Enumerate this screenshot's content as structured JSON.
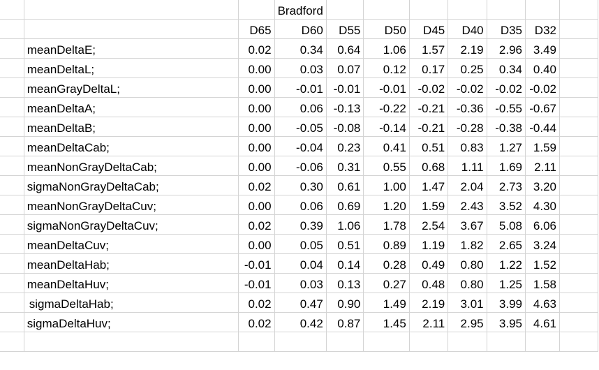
{
  "spreadsheet": {
    "group_title": "Bradford",
    "columns": [
      "D65",
      "D60",
      "D55",
      "D50",
      "D45",
      "D40",
      "D35",
      "D32"
    ],
    "rows": [
      {
        "label": "meanDeltaE;",
        "values": [
          "0.02",
          "0.34",
          "0.64",
          "1.06",
          "1.57",
          "2.19",
          "2.96",
          "3.49"
        ]
      },
      {
        "label": "meanDeltaL;",
        "values": [
          "0.00",
          "0.03",
          "0.07",
          "0.12",
          "0.17",
          "0.25",
          "0.34",
          "0.40"
        ]
      },
      {
        "label": "meanGrayDeltaL;",
        "values": [
          "0.00",
          "-0.01",
          "-0.01",
          "-0.01",
          "-0.02",
          "-0.02",
          "-0.02",
          "-0.02"
        ]
      },
      {
        "label": "meanDeltaA;",
        "values": [
          "0.00",
          "0.06",
          "-0.13",
          "-0.22",
          "-0.21",
          "-0.36",
          "-0.55",
          "-0.67"
        ]
      },
      {
        "label": "meanDeltaB;",
        "values": [
          "0.00",
          "-0.05",
          "-0.08",
          "-0.14",
          "-0.21",
          "-0.28",
          "-0.38",
          "-0.44"
        ]
      },
      {
        "label": "meanDeltaCab;",
        "values": [
          "0.00",
          "-0.04",
          "0.23",
          "0.41",
          "0.51",
          "0.83",
          "1.27",
          "1.59"
        ]
      },
      {
        "label": "meanNonGrayDeltaCab;",
        "values": [
          "0.00",
          "-0.06",
          "0.31",
          "0.55",
          "0.68",
          "1.11",
          "1.69",
          "2.11"
        ]
      },
      {
        "label": "sigmaNonGrayDeltaCab;",
        "values": [
          "0.02",
          "0.30",
          "0.61",
          "1.00",
          "1.47",
          "2.04",
          "2.73",
          "3.20"
        ]
      },
      {
        "label": "meanNonGrayDeltaCuv;",
        "values": [
          "0.00",
          "0.06",
          "0.69",
          "1.20",
          "1.59",
          "2.43",
          "3.52",
          "4.30"
        ]
      },
      {
        "label": "sigmaNonGrayDeltaCuv;",
        "values": [
          "0.02",
          "0.39",
          "1.06",
          "1.78",
          "2.54",
          "3.67",
          "5.08",
          "6.06"
        ]
      },
      {
        "label": "meanDeltaCuv;",
        "values": [
          "0.00",
          "0.05",
          "0.51",
          "0.89",
          "1.19",
          "1.82",
          "2.65",
          "3.24"
        ]
      },
      {
        "label": "meanDeltaHab;",
        "values": [
          "-0.01",
          "0.04",
          "0.14",
          "0.28",
          "0.49",
          "0.80",
          "1.22",
          "1.52"
        ]
      },
      {
        "label": "meanDeltaHuv;",
        "values": [
          "-0.01",
          "0.03",
          "0.13",
          "0.27",
          "0.48",
          "0.80",
          "1.25",
          "1.58"
        ]
      },
      {
        "label": " sigmaDeltaHab;",
        "values": [
          "0.02",
          "0.47",
          "0.90",
          "1.49",
          "2.19",
          "3.01",
          "3.99",
          "4.63"
        ]
      },
      {
        "label": "sigmaDeltaHuv;",
        "values": [
          "0.02",
          "0.42",
          "0.87",
          "1.45",
          "2.11",
          "2.95",
          "3.95",
          "4.61"
        ]
      }
    ]
  }
}
